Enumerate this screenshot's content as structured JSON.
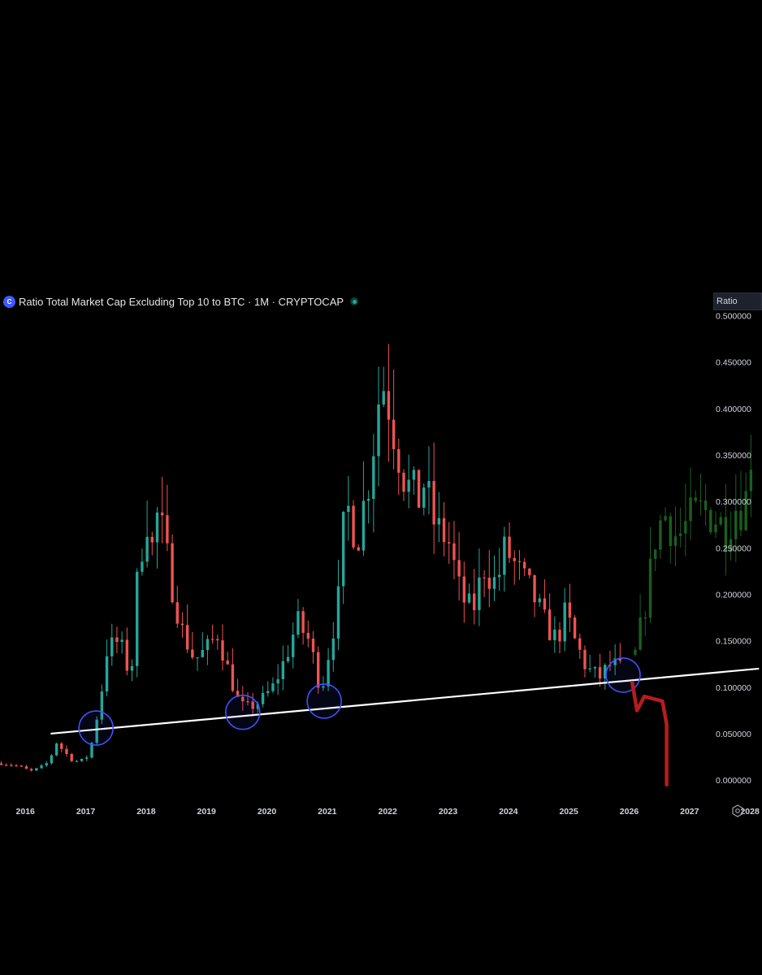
{
  "header": {
    "icon": "cryptocap-icon",
    "title": "Ratio Total Market Cap Excluding Top 10 to BTC · 1M · CRYPTOCAP",
    "status_color": "#26a69a"
  },
  "scale_badge": "Ratio",
  "settings_icon": "gear-icon",
  "chart_data": {
    "type": "candlestick",
    "symbol": "Ratio Total Market Cap Excluding Top 10 to BTC",
    "interval": "1M",
    "exchange": "CRYPTOCAP",
    "ylim": [
      -0.02,
      0.51
    ],
    "y_ticks": [
      "0.500000",
      "0.450000",
      "0.400000",
      "0.350000",
      "0.300000",
      "0.250000",
      "0.200000",
      "0.150000",
      "0.100000",
      "0.050000",
      "0.000000"
    ],
    "x_ticks": [
      "2016",
      "2017",
      "2018",
      "2019",
      "2020",
      "2021",
      "2022",
      "2023",
      "2024",
      "2025",
      "2026",
      "2027",
      "2028"
    ],
    "x_range": [
      2015.58,
      2028.2
    ],
    "colors": {
      "up": "#26a69a",
      "down": "#ef5350",
      "projection": "#1b5e20",
      "trendline": "#ffffff",
      "circle": "#3f51ff",
      "drawing": "#b71c1c"
    },
    "candle_anchors": [
      [
        2015.6,
        0.018
      ],
      [
        2015.9,
        0.015
      ],
      [
        2016.0,
        0.012
      ],
      [
        2016.1,
        0.01
      ],
      [
        2016.25,
        0.014
      ],
      [
        2016.4,
        0.02
      ],
      [
        2016.5,
        0.042
      ],
      [
        2016.65,
        0.03
      ],
      [
        2016.8,
        0.02
      ],
      [
        2017.0,
        0.022
      ],
      [
        2017.1,
        0.04
      ],
      [
        2017.25,
        0.09
      ],
      [
        2017.35,
        0.14
      ],
      [
        2017.55,
        0.15
      ],
      [
        2017.75,
        0.11
      ],
      [
        2017.85,
        0.21
      ],
      [
        2018.0,
        0.29
      ],
      [
        2018.1,
        0.25
      ],
      [
        2018.2,
        0.29
      ],
      [
        2018.4,
        0.22
      ],
      [
        2018.6,
        0.16
      ],
      [
        2018.8,
        0.13
      ],
      [
        2019.0,
        0.14
      ],
      [
        2019.2,
        0.16
      ],
      [
        2019.3,
        0.13
      ],
      [
        2019.55,
        0.08
      ],
      [
        2019.7,
        0.078
      ],
      [
        2019.9,
        0.085
      ],
      [
        2020.1,
        0.1
      ],
      [
        2020.3,
        0.13
      ],
      [
        2020.5,
        0.17
      ],
      [
        2020.7,
        0.15
      ],
      [
        2020.9,
        0.095
      ],
      [
        2021.0,
        0.13
      ],
      [
        2021.2,
        0.2
      ],
      [
        2021.3,
        0.3
      ],
      [
        2021.5,
        0.26
      ],
      [
        2021.7,
        0.33
      ],
      [
        2021.85,
        0.41
      ],
      [
        2021.95,
        0.43
      ],
      [
        2022.1,
        0.38
      ],
      [
        2022.3,
        0.32
      ],
      [
        2022.5,
        0.3
      ],
      [
        2022.6,
        0.32
      ],
      [
        2022.8,
        0.27
      ],
      [
        2023.0,
        0.26
      ],
      [
        2023.2,
        0.2
      ],
      [
        2023.4,
        0.18
      ],
      [
        2023.6,
        0.23
      ],
      [
        2023.8,
        0.21
      ],
      [
        2023.95,
        0.25
      ],
      [
        2024.2,
        0.22
      ],
      [
        2024.4,
        0.2
      ],
      [
        2024.6,
        0.17
      ],
      [
        2024.8,
        0.15
      ],
      [
        2024.95,
        0.18
      ],
      [
        2025.1,
        0.15
      ],
      [
        2025.3,
        0.12
      ],
      [
        2025.5,
        0.11
      ],
      [
        2025.7,
        0.125
      ],
      [
        2025.9,
        0.118
      ]
    ],
    "projection_anchors": [
      [
        2026.1,
        0.135
      ],
      [
        2026.3,
        0.2
      ],
      [
        2026.45,
        0.27
      ],
      [
        2026.6,
        0.285
      ],
      [
        2026.8,
        0.26
      ],
      [
        2027.0,
        0.28
      ],
      [
        2027.2,
        0.29
      ],
      [
        2027.4,
        0.285
      ],
      [
        2027.6,
        0.27
      ],
      [
        2027.8,
        0.3
      ],
      [
        2027.9,
        0.29
      ],
      [
        2028.0,
        0.33
      ],
      [
        2028.02,
        0.36
      ]
    ],
    "support_line": [
      [
        2016.42,
        0.05
      ],
      [
        2028.15,
        0.12
      ]
    ],
    "highlight_circles": [
      [
        2017.17,
        0.056
      ],
      [
        2019.6,
        0.073
      ],
      [
        2020.95,
        0.085
      ],
      [
        2025.9,
        0.113
      ]
    ],
    "hand_drawn_path": [
      [
        2026.05,
        0.105
      ],
      [
        2026.13,
        0.075
      ],
      [
        2026.25,
        0.09
      ],
      [
        2026.55,
        0.085
      ],
      [
        2026.62,
        0.06
      ],
      [
        2026.62,
        -0.005
      ]
    ]
  }
}
